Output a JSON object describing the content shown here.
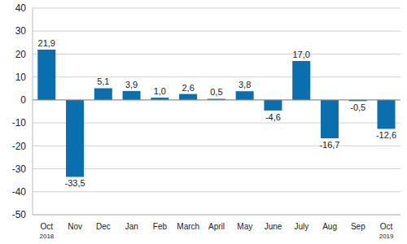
{
  "chart_data": {
    "type": "bar",
    "categories": [
      "Oct 2018",
      "Nov",
      "Dec",
      "Jan",
      "Feb",
      "March",
      "April",
      "May",
      "June",
      "July",
      "Aug",
      "Sep",
      "Oct 2019"
    ],
    "values": [
      21.9,
      -33.5,
      5.1,
      3.9,
      1.0,
      2.6,
      0.5,
      3.8,
      -4.6,
      17.0,
      -16.7,
      -0.5,
      -12.6
    ],
    "value_labels": [
      "21,9",
      "-33,5",
      "5,1",
      "3,9",
      "1,0",
      "2,6",
      "0,5",
      "3,8",
      "-4,6",
      "17,0",
      "-16,7",
      "-0,5",
      "-12,6"
    ],
    "color": "#0a6fae",
    "ylim": [
      -50,
      40
    ],
    "yticks": [
      -50,
      -40,
      -30,
      -20,
      -10,
      0,
      10,
      20,
      30,
      40
    ],
    "grid": true,
    "data_labels": true
  }
}
